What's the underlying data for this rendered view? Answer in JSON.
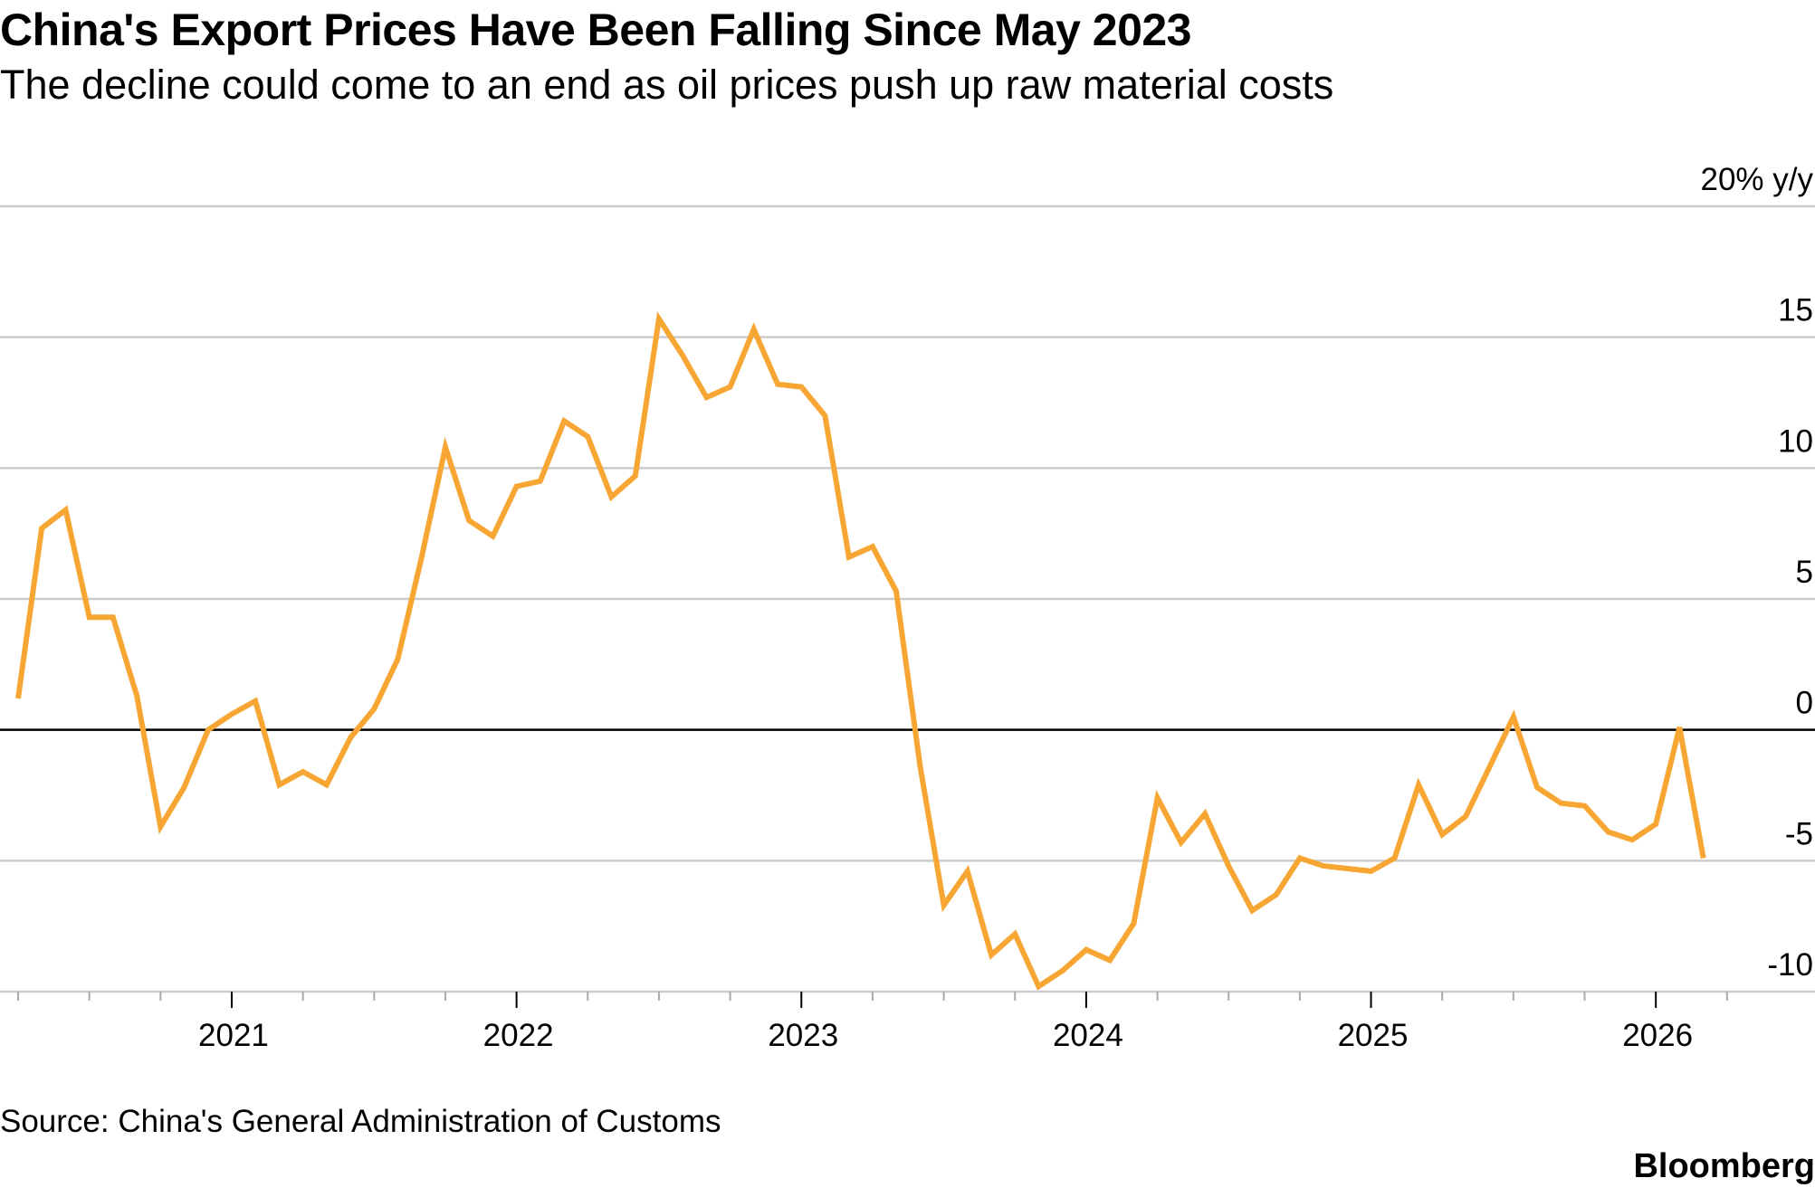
{
  "header": {
    "title": "China's Export Prices Have Been Falling Since May 2023",
    "subtitle": "The decline could come to an end as oil prices push up raw material costs"
  },
  "footer": {
    "source": "Source: China's General Administration of Customs",
    "brand": "Bloomberg"
  },
  "colors": {
    "series": "#F7A633",
    "grid": "#cccccc",
    "zero_line": "#000000"
  },
  "chart_data": {
    "type": "line",
    "title": "China's Export Prices Have Been Falling Since May 2023",
    "subtitle": "The decline could come to an end as oil prices push up raw material costs",
    "ylabel": "% y/y",
    "y_unit_label": "20% y/y",
    "ylim": [
      -10,
      20
    ],
    "y_ticks": [
      {
        "value": 20,
        "label": "20% y/y"
      },
      {
        "value": 15,
        "label": "15"
      },
      {
        "value": 10,
        "label": "10"
      },
      {
        "value": 5,
        "label": "5"
      },
      {
        "value": 0,
        "label": "0"
      },
      {
        "value": -5,
        "label": "-5"
      },
      {
        "value": -10,
        "label": "-10"
      }
    ],
    "x_ticks": [
      {
        "value": 2021.0,
        "label": "2021"
      },
      {
        "value": 2022.0,
        "label": "2022"
      },
      {
        "value": 2023.0,
        "label": "2023"
      },
      {
        "value": 2024.0,
        "label": "2024"
      },
      {
        "value": 2025.0,
        "label": "2025"
      },
      {
        "value": 2026.0,
        "label": "2026"
      }
    ],
    "xlim": [
      2020.25,
      2026.33
    ],
    "legend": "none",
    "series": [
      {
        "name": "China export prices",
        "x": [
          2020.25,
          2020.333,
          2020.417,
          2020.5,
          2020.583,
          2020.667,
          2020.75,
          2020.833,
          2020.917,
          2021.0,
          2021.083,
          2021.167,
          2021.25,
          2021.333,
          2021.417,
          2021.5,
          2021.583,
          2021.667,
          2021.75,
          2021.833,
          2021.917,
          2022.0,
          2022.083,
          2022.167,
          2022.25,
          2022.333,
          2022.417,
          2022.5,
          2022.583,
          2022.667,
          2022.75,
          2022.833,
          2022.917,
          2023.0,
          2023.083,
          2023.167,
          2023.25,
          2023.333,
          2023.417,
          2023.5,
          2023.583,
          2023.667,
          2023.75,
          2023.833,
          2023.917,
          2024.0,
          2024.083,
          2024.167,
          2024.25,
          2024.333,
          2024.417,
          2024.5,
          2024.583,
          2024.667,
          2024.75,
          2024.833,
          2024.917,
          2025.0,
          2025.083,
          2025.167,
          2025.25,
          2025.333,
          2025.417,
          2025.5,
          2025.583,
          2025.667,
          2025.75,
          2025.833,
          2025.917,
          2026.0,
          2026.083,
          2026.167
        ],
        "values": [
          1.2,
          7.7,
          8.4,
          4.3,
          4.3,
          1.3,
          -3.7,
          -2.2,
          0.0,
          0.6,
          1.1,
          -2.1,
          -1.6,
          -2.1,
          -0.3,
          0.8,
          2.7,
          6.6,
          10.8,
          8.0,
          7.4,
          9.3,
          9.5,
          11.8,
          11.2,
          8.9,
          9.7,
          15.7,
          14.3,
          12.7,
          13.1,
          15.3,
          13.2,
          13.1,
          12.0,
          6.6,
          7.0,
          5.3,
          -1.4,
          -6.7,
          -5.4,
          -8.6,
          -7.8,
          -9.8,
          -9.2,
          -8.4,
          -8.8,
          -7.4,
          -2.6,
          -4.3,
          -3.2,
          -5.2,
          -6.9,
          -6.3,
          -4.9,
          -5.2,
          -5.3,
          -5.4,
          -4.9,
          -2.1,
          -4.0,
          -3.3,
          -1.4,
          0.5,
          -2.2,
          -2.8,
          -2.9,
          -3.9,
          -4.2,
          -3.6,
          0.1,
          -4.9
        ]
      }
    ]
  }
}
